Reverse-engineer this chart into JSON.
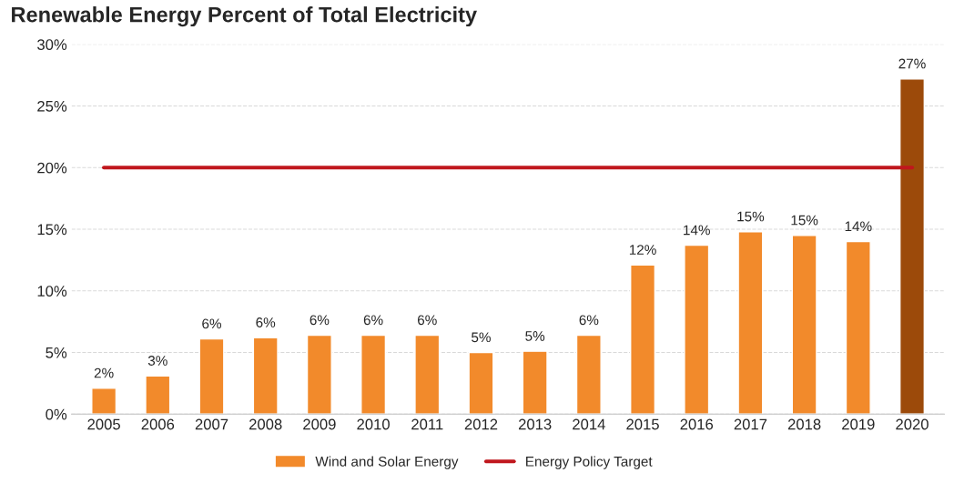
{
  "chart_data": {
    "type": "bar",
    "title": "Renewable Energy Percent of Total Electricity",
    "categories": [
      "2005",
      "2006",
      "2007",
      "2008",
      "2009",
      "2010",
      "2011",
      "2012",
      "2013",
      "2014",
      "2015",
      "2016",
      "2017",
      "2018",
      "2019",
      "2020"
    ],
    "series": [
      {
        "name": "Wind and Solar Energy",
        "color": "#f28a2b",
        "colors": [
          "#f28a2b",
          "#f28a2b",
          "#f28a2b",
          "#f28a2b",
          "#f28a2b",
          "#f28a2b",
          "#f28a2b",
          "#f28a2b",
          "#f28a2b",
          "#f28a2b",
          "#f28a2b",
          "#f28a2b",
          "#f28a2b",
          "#f28a2b",
          "#f28a2b",
          "#9c4a0a"
        ],
        "values": [
          2.1,
          3.1,
          6.1,
          6.2,
          6.4,
          6.4,
          6.4,
          5.0,
          5.1,
          6.4,
          12.1,
          13.7,
          14.8,
          14.5,
          14.0,
          27.2
        ],
        "value_labels": [
          "2%",
          "3%",
          "6%",
          "6%",
          "6%",
          "6%",
          "6%",
          "5%",
          "5%",
          "6%",
          "12%",
          "14%",
          "15%",
          "15%",
          "14%",
          "27%"
        ]
      },
      {
        "name": "Energy Policy Target",
        "type": "line",
        "color": "#c0171d",
        "values": [
          20,
          20,
          20,
          20,
          20,
          20,
          20,
          20,
          20,
          20,
          20,
          20,
          20,
          20,
          20,
          20
        ]
      }
    ],
    "ylim": [
      0,
      30
    ],
    "yticks": [
      {
        "value": 0,
        "label": "0%"
      },
      {
        "value": 5,
        "label": "5%"
      },
      {
        "value": 10,
        "label": "10%"
      },
      {
        "value": 15,
        "label": "15%"
      },
      {
        "value": 20,
        "label": "20%"
      },
      {
        "value": 25,
        "label": "25%"
      },
      {
        "value": 30,
        "label": "30%"
      }
    ],
    "grid": "y",
    "legend": "bottom",
    "marker": "none"
  }
}
